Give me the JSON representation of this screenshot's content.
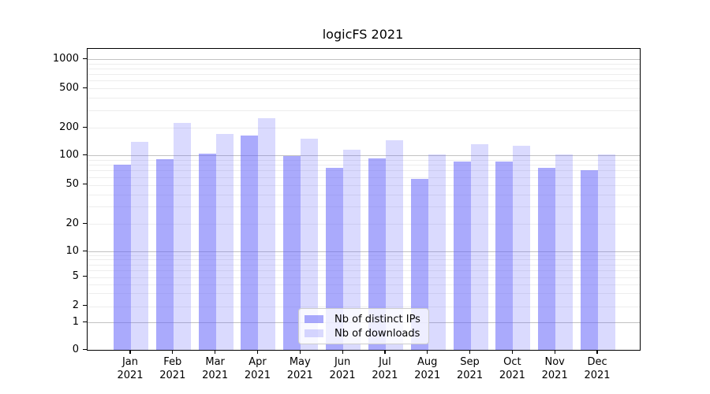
{
  "title": "logicFS 2021",
  "chart_data": {
    "type": "bar",
    "title": "logicFS 2021",
    "categories": [
      "Jan",
      "Feb",
      "Mar",
      "Apr",
      "May",
      "Jun",
      "Jul",
      "Aug",
      "Sep",
      "Oct",
      "Nov",
      "Dec"
    ],
    "category_year": "2021",
    "x_tick_labels": [
      "Jan 2021",
      "Feb 2021",
      "Mar 2021",
      "Apr 2021",
      "May 2021",
      "Jun 2021",
      "Jul 2021",
      "Aug 2021",
      "Sep 2021",
      "Oct 2021",
      "Nov 2021",
      "Dec 2021"
    ],
    "series": [
      {
        "name": "Nb of distinct IPs",
        "values": [
          80,
          92,
          105,
          165,
          99,
          74,
          93,
          57,
          87,
          87,
          74,
          70
        ],
        "color_base": "#6464fa",
        "alpha": 0.55
      },
      {
        "name": "Nb of downloads",
        "values": [
          140,
          225,
          170,
          250,
          152,
          115,
          145,
          103,
          131,
          128,
          103,
          103
        ],
        "color_base": "#6464fa",
        "alpha": 0.24
      }
    ],
    "yscale": "symlog",
    "y_ticks": [
      0,
      1,
      2,
      5,
      10,
      20,
      50,
      100,
      200,
      500,
      1000
    ],
    "ylim": [
      0,
      1300
    ],
    "xlabel": "",
    "ylabel": "",
    "grid": true,
    "legend_position": "lower center"
  },
  "colors": {
    "bar_base": "#6464fa",
    "gridline_major": "#c2c2c2",
    "gridline_minor": "#ededed",
    "axis": "#000000",
    "legend_border": "#cccccc"
  }
}
